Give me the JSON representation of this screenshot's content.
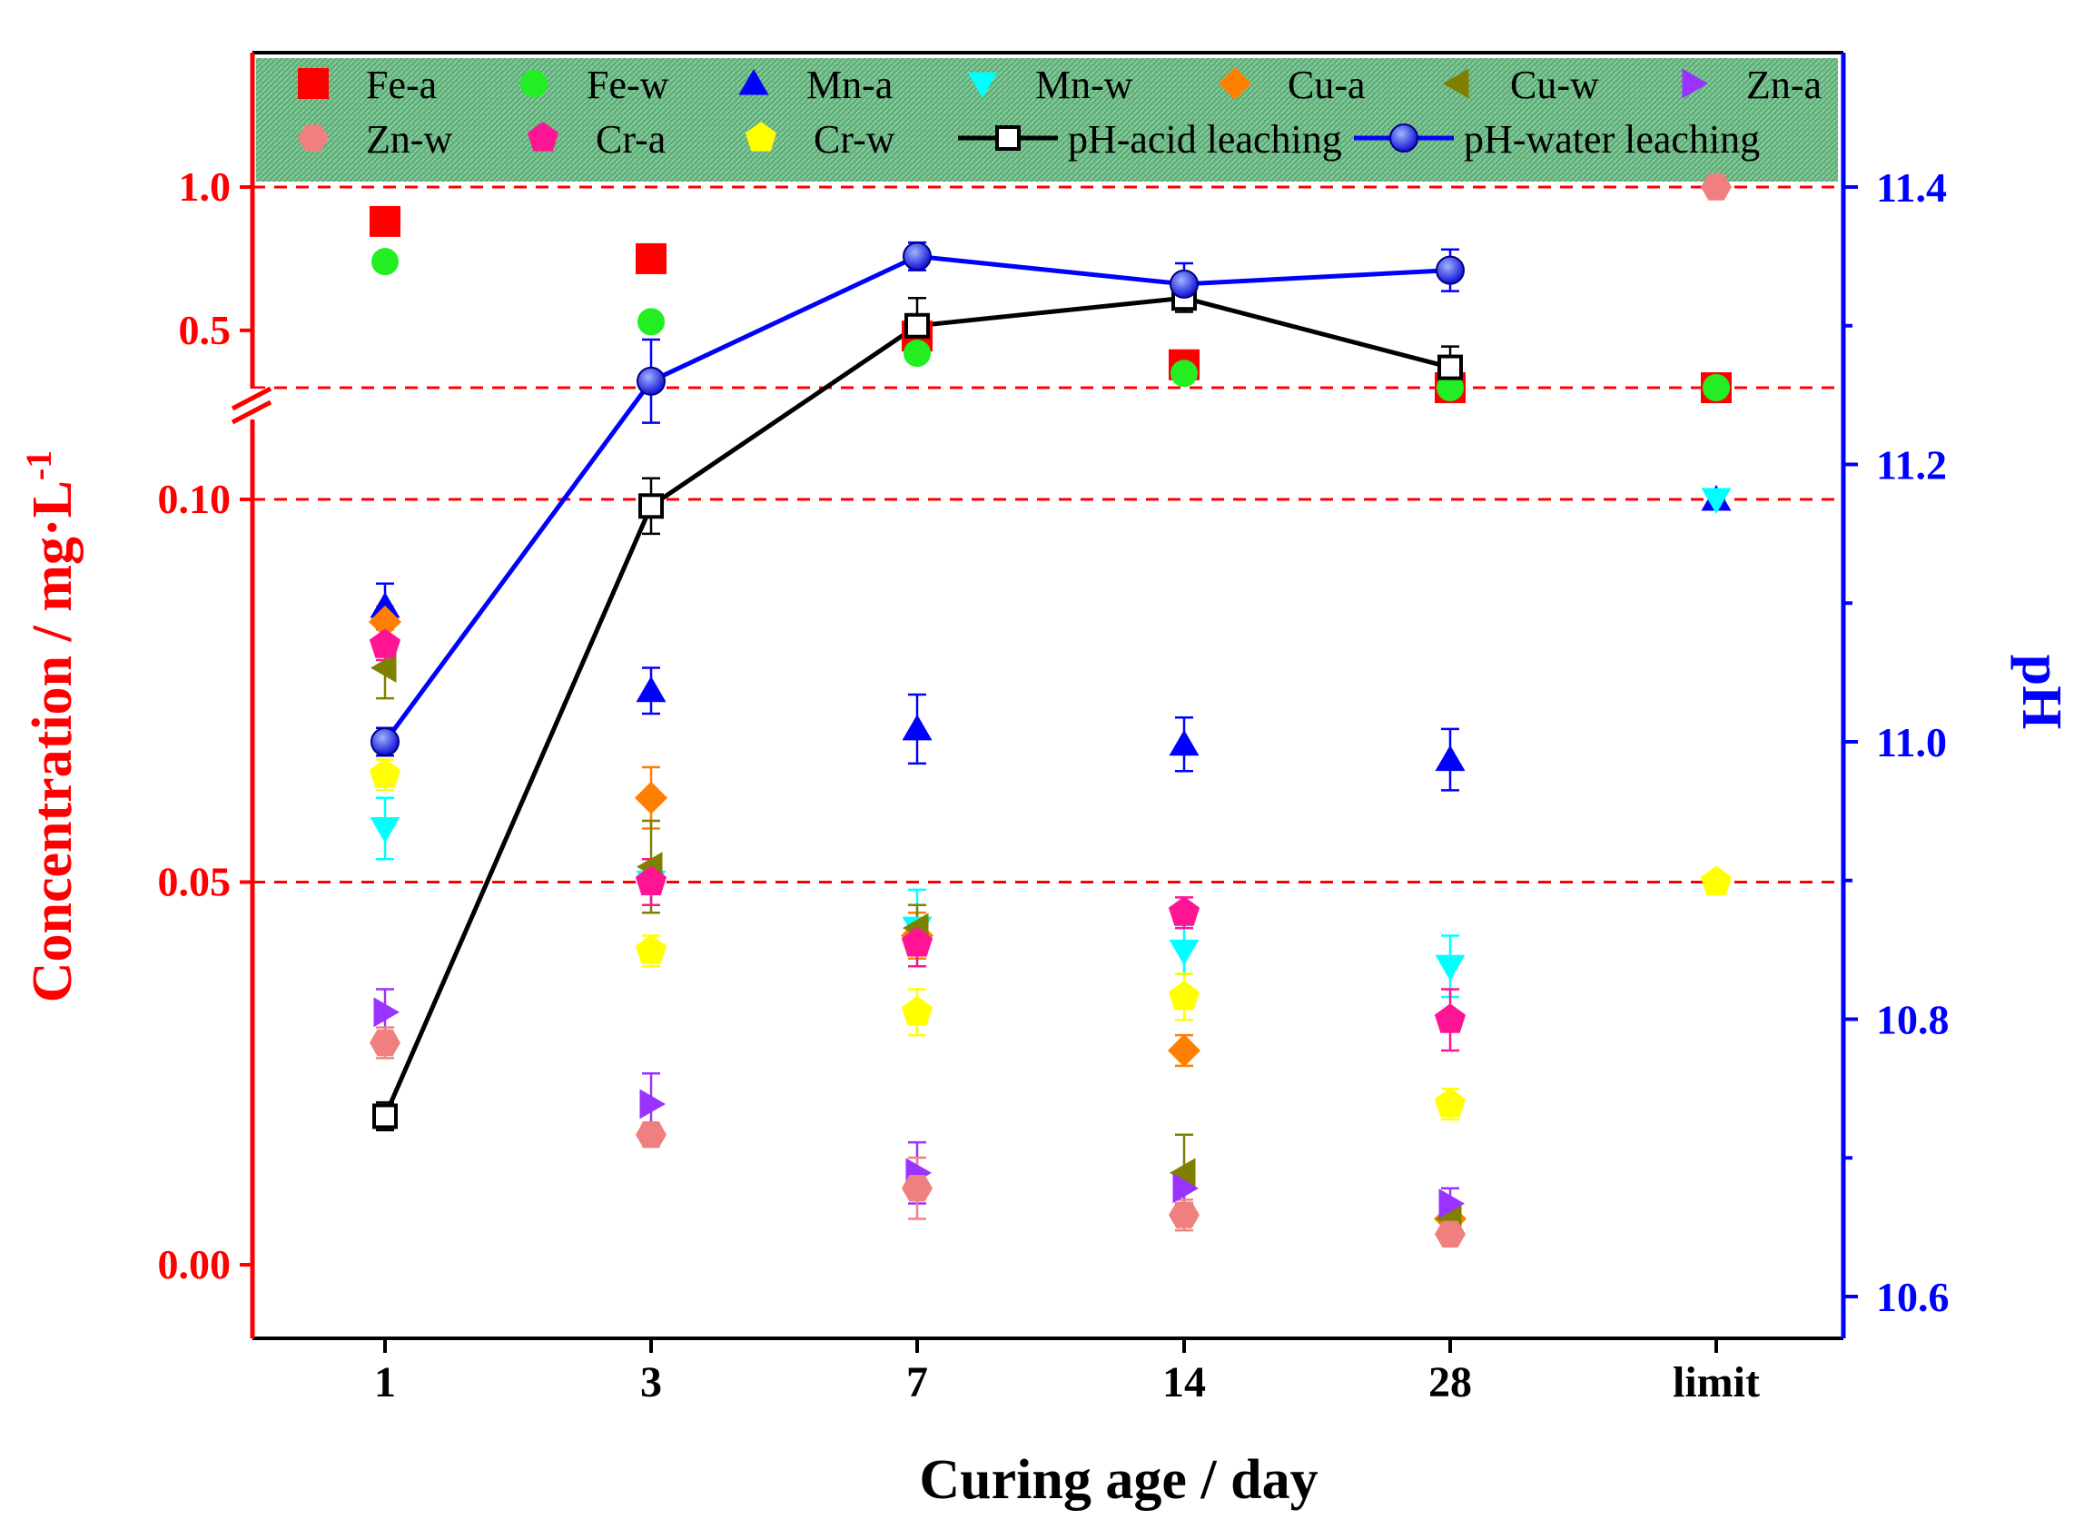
{
  "chart_data": {
    "type": "scatter",
    "title": "",
    "categories": [
      "1",
      "3",
      "7",
      "14",
      "28",
      "limit"
    ],
    "xlabel": "Curing age / day",
    "ylabel_left": "Concentration / mg·L",
    "ylabel_left_sup": "-1",
    "ylabel_right": "pH",
    "left_axis": {
      "break_between": [
        0.1,
        0.5
      ],
      "ticks": [
        {
          "value": 0.0,
          "label": "0.00"
        },
        {
          "value": 0.05,
          "label": "0.05"
        },
        {
          "value": 0.1,
          "label": "0.10"
        },
        {
          "value": 0.5,
          "label": "0.5"
        },
        {
          "value": 1.0,
          "label": "1.0"
        }
      ]
    },
    "right_axis": {
      "ylim": [
        10.58,
        11.52
      ],
      "ticks": [
        {
          "value": 10.6,
          "label": "10.6"
        },
        {
          "value": 10.8,
          "label": "10.8"
        },
        {
          "value": 11.0,
          "label": "11.0"
        },
        {
          "value": 11.2,
          "label": "11.2"
        },
        {
          "value": 11.4,
          "label": "11.4"
        }
      ]
    },
    "reference_lines": [
      1.0,
      0.3,
      0.1,
      0.05
    ],
    "series": [
      {
        "name": "Fe-a",
        "marker": "square",
        "color": "#ff0000",
        "values": [
          0.88,
          0.75,
          0.48,
          0.38,
          0.3,
          0.3
        ],
        "err": [
          0,
          0,
          0,
          0,
          0,
          0
        ]
      },
      {
        "name": "Fe-w",
        "marker": "circle",
        "color": "#22ee22",
        "values": [
          0.74,
          0.53,
          0.42,
          0.35,
          0.3,
          0.3
        ],
        "err": [
          0,
          0,
          0,
          0,
          0,
          0
        ]
      },
      {
        "name": "Mn-a",
        "marker": "triangle-up",
        "color": "#0000ff",
        "values": [
          0.086,
          0.075,
          0.07,
          0.068,
          0.066,
          0.1
        ],
        "err": [
          0.003,
          0.003,
          0.0045,
          0.0035,
          0.004,
          0
        ]
      },
      {
        "name": "Mn-w",
        "marker": "triangle-down",
        "color": "#00ffff",
        "values": [
          0.057,
          0.05,
          0.044,
          0.041,
          0.039,
          0.1
        ],
        "err": [
          0.004,
          0.003,
          0.005,
          0.003,
          0.004,
          0
        ]
      },
      {
        "name": "Cu-a",
        "marker": "diamond",
        "color": "#ff7f00",
        "values": [
          0.084,
          0.061,
          0.043,
          0.028,
          0.006,
          null
        ],
        "err": [
          0.002,
          0.004,
          0.003,
          0.002,
          0.001,
          0
        ]
      },
      {
        "name": "Cu-w",
        "marker": "triangle-left",
        "color": "#808000",
        "values": [
          0.078,
          0.052,
          0.044,
          0.012,
          0.006,
          null
        ],
        "err": [
          0.004,
          0.006,
          0.003,
          0.005,
          0.001,
          0
        ]
      },
      {
        "name": "Zn-a",
        "marker": "triangle-right",
        "color": "#9933ff",
        "values": [
          0.033,
          0.021,
          0.012,
          0.01,
          0.008,
          null
        ],
        "err": [
          0.003,
          0.004,
          0.004,
          0.002,
          0.002,
          0
        ]
      },
      {
        "name": "Zn-w",
        "marker": "hexagon",
        "color": "#f08080",
        "values": [
          0.029,
          0.017,
          0.01,
          0.0065,
          0.004,
          1.0
        ],
        "err": [
          0.002,
          0.0015,
          0.004,
          0.002,
          0.001,
          0
        ]
      },
      {
        "name": "Cr-a",
        "marker": "pentagon",
        "color": "#ff1493",
        "values": [
          0.081,
          0.05,
          0.042,
          0.046,
          0.032,
          null
        ],
        "err": [
          0.002,
          0.003,
          0.003,
          0.002,
          0.004,
          0
        ]
      },
      {
        "name": "Cr-w",
        "marker": "pentagon",
        "color": "#ffff00",
        "values": [
          0.064,
          0.041,
          0.033,
          0.035,
          0.021,
          0.05
        ],
        "err": [
          0.002,
          0.002,
          0.003,
          0.003,
          0.002,
          0
        ]
      },
      {
        "name": "pH-acid leaching",
        "marker": "open-square",
        "color": "#000000",
        "axis": "right",
        "line": true,
        "values": [
          10.73,
          11.17,
          11.3,
          11.32,
          11.27,
          null
        ],
        "err": [
          0.01,
          0.02,
          0.02,
          0.01,
          0.015,
          0
        ]
      },
      {
        "name": "pH-water leaching",
        "marker": "ball",
        "color": "#0000ff",
        "axis": "right",
        "line": true,
        "values": [
          11.0,
          11.26,
          11.35,
          11.33,
          11.34,
          null
        ],
        "err": [
          0.01,
          0.03,
          0.01,
          0.015,
          0.015,
          0
        ]
      }
    ],
    "legend_position": "top (inside plot, shaded band)"
  },
  "colors": {
    "left_axis": "#ff0000",
    "right_axis": "#0000ff",
    "legend_background": "#5fae7a",
    "reference_line": "#ff0000"
  }
}
